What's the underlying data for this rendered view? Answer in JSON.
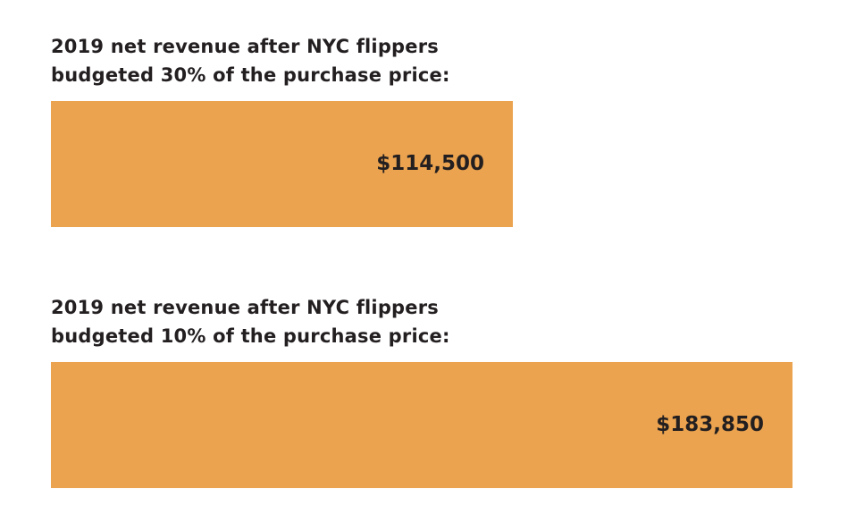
{
  "chart_data": {
    "type": "bar",
    "orientation": "horizontal",
    "categories": [
      [
        "2019 net revenue after NYC flippers",
        "budgeted 30% of the purchase price:"
      ],
      [
        "2019 net revenue after NYC flippers",
        "budgeted 10% of the purchase price:"
      ]
    ],
    "values": [
      114500,
      183850
    ],
    "value_labels": [
      "$114,500",
      "$183,850"
    ],
    "bar_color": "#eba34f",
    "text_color": "#231f20",
    "xlim": [
      0,
      183850
    ],
    "grid": false,
    "legend": "none"
  }
}
